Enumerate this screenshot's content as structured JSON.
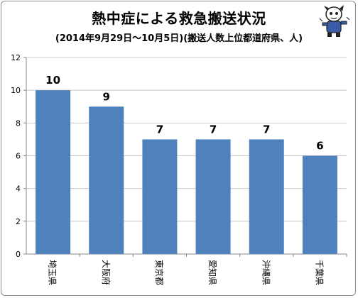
{
  "chart_data": {
    "type": "bar",
    "title": "熱中症による救急搬送状況",
    "subtitle": "(2014年9月29日～10月5日)(搬送人数上位都道府県、人)",
    "categories": [
      "埼玉県",
      "大阪府",
      "東京都",
      "愛知県",
      "沖縄県",
      "千葉県"
    ],
    "values": [
      10,
      9,
      7,
      7,
      7,
      6
    ],
    "data_labels": [
      "10",
      "9",
      "7",
      "7",
      "7",
      "6"
    ],
    "y_ticks": [
      "0",
      "2",
      "4",
      "6",
      "8",
      "10",
      "12"
    ],
    "ylim": [
      0,
      12
    ],
    "xlabel": "",
    "ylabel": "",
    "grid": true,
    "legend": "none",
    "colors": {
      "bar": "#4f81bd",
      "grid": "#c8c8c8",
      "axis": "#8a8a8a"
    }
  },
  "icons": {
    "mascot": "cartoon-mascot-icon"
  }
}
